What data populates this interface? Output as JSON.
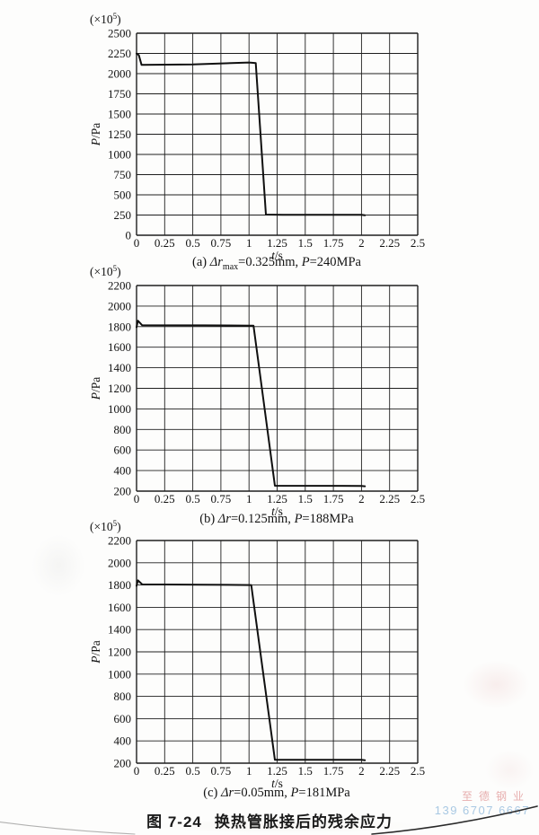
{
  "page": {
    "figure_caption": {
      "label": "图 7-24",
      "title": "换热管胀接后的残余应力"
    },
    "watermark": {
      "line1": "至德钢业",
      "line2": "139 6707 6667",
      "line1_color": "#e09494",
      "line2_color": "#94bcdd"
    }
  },
  "chart_data": [
    {
      "id": "a",
      "type": "line",
      "grid": true,
      "y_multiplier": {
        "prefix": "(×10",
        "exp": "5",
        "suffix": ")"
      },
      "ylabel": {
        "var": "P",
        "unit": "/Pa"
      },
      "xlabel": {
        "var": "t",
        "unit": "/s"
      },
      "xlim": [
        0,
        2.5
      ],
      "xstep": 0.25,
      "ylim": [
        0,
        2500
      ],
      "ystep": 250,
      "caption": {
        "prefix": "(a) ",
        "delta_var": "Δr",
        "delta_sub": "max",
        "value_text": "=0.325mm, ",
        "p_var": "P",
        "p_text": "=240MPa"
      },
      "points": [
        [
          0,
          2248
        ],
        [
          0.02,
          2230
        ],
        [
          0.045,
          2108
        ],
        [
          0.5,
          2114
        ],
        [
          1.0,
          2138
        ],
        [
          1.06,
          2130
        ],
        [
          1.15,
          256
        ],
        [
          1.3,
          253
        ],
        [
          2.0,
          253
        ],
        [
          2.03,
          247
        ]
      ]
    },
    {
      "id": "b",
      "type": "line",
      "grid": true,
      "y_multiplier": {
        "prefix": "(×10",
        "exp": "5",
        "suffix": ")"
      },
      "ylabel": {
        "var": "P",
        "unit": "/Pa"
      },
      "xlabel": {
        "var": "t",
        "unit": "/s"
      },
      "xlim": [
        0,
        2.5
      ],
      "xstep": 0.25,
      "ylim": [
        200,
        2200
      ],
      "ystep": 200,
      "caption": {
        "prefix": "(b) ",
        "delta_var": "Δr",
        "delta_sub": "",
        "value_text": "=0.125mm, ",
        "p_var": "P",
        "p_text": "=188MPa"
      },
      "points": [
        [
          0,
          1795
        ],
        [
          0.012,
          1858
        ],
        [
          0.05,
          1813
        ],
        [
          0.6,
          1812
        ],
        [
          1.04,
          1810
        ],
        [
          1.23,
          252
        ],
        [
          2.0,
          251
        ],
        [
          2.03,
          247
        ]
      ]
    },
    {
      "id": "c",
      "type": "line",
      "grid": true,
      "y_multiplier": {
        "prefix": "(×10",
        "exp": "5",
        "suffix": ")"
      },
      "ylabel": {
        "var": "P",
        "unit": "/Pa"
      },
      "xlabel": {
        "var": "t",
        "unit": "/s"
      },
      "xlim": [
        0,
        2.5
      ],
      "xstep": 0.25,
      "ylim": [
        200,
        2200
      ],
      "ystep": 200,
      "caption": {
        "prefix": "(c) ",
        "delta_var": "Δr",
        "delta_sub": "",
        "value_text": "=0.05mm, ",
        "p_var": "P",
        "p_text": "=181MPa"
      },
      "points": [
        [
          0,
          1793
        ],
        [
          0.012,
          1842
        ],
        [
          0.05,
          1806
        ],
        [
          0.6,
          1803
        ],
        [
          1.02,
          1800
        ],
        [
          1.23,
          231
        ],
        [
          2.0,
          230
        ],
        [
          2.03,
          226
        ]
      ]
    }
  ]
}
